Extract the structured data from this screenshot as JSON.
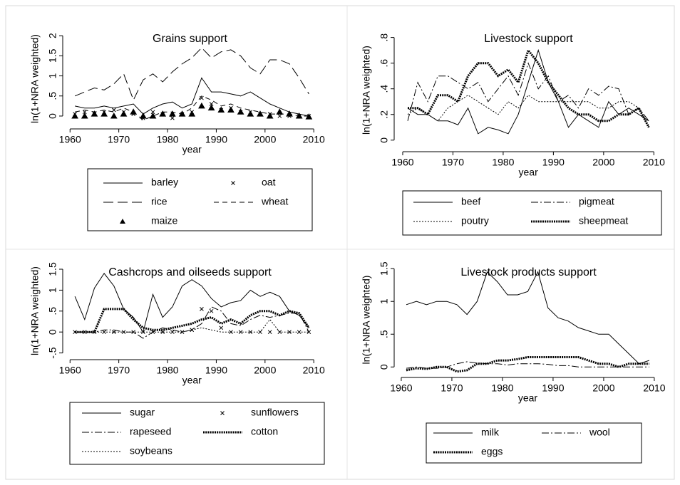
{
  "chart_data": [
    {
      "type": "line",
      "title": "Grains support",
      "xlabel": "year",
      "ylabel": "ln(1+NRA weighted)",
      "x": [
        1961,
        1963,
        1965,
        1967,
        1969,
        1971,
        1973,
        1975,
        1977,
        1979,
        1981,
        1983,
        1985,
        1987,
        1989,
        1991,
        1993,
        1995,
        1997,
        1999,
        2001,
        2003,
        2005,
        2007,
        2009
      ],
      "xlim": [
        1958.5,
        2010.7
      ],
      "xticks": [
        1960,
        1970,
        1980,
        1990,
        2000,
        2010
      ],
      "ylim": [
        -0.32,
        2.18
      ],
      "yticks": [
        0,
        {
          "value": 0.5,
          "label": ".5"
        },
        1,
        1.5,
        2
      ],
      "series": [
        {
          "name": "barley",
          "color": "#000000",
          "style": "solid",
          "values": [
            0.25,
            0.2,
            0.2,
            0.25,
            0.2,
            0.25,
            0.3,
            0.05,
            0.2,
            0.3,
            0.35,
            0.2,
            0.3,
            0.95,
            0.6,
            0.6,
            0.55,
            0.5,
            0.6,
            0.45,
            0.3,
            0.2,
            0.1,
            0.05,
            0
          ]
        },
        {
          "name": "oat",
          "color": "#000000",
          "style": "x",
          "values": [
            0.05,
            0.1,
            0.05,
            0.1,
            0.15,
            0.1,
            0.05,
            -0.05,
            0.1,
            0.05,
            -0.05,
            0.05,
            0.1,
            0.45,
            0.3,
            0.15,
            0.2,
            0.1,
            0.1,
            0.05,
            0.05,
            0,
            0,
            0,
            0
          ]
        },
        {
          "name": "rice",
          "color": "#000000",
          "style": "longdash",
          "values": [
            0.5,
            0.6,
            0.7,
            0.65,
            0.8,
            1.05,
            0.4,
            0.9,
            1.05,
            0.85,
            1.1,
            1.3,
            1.45,
            1.7,
            1.45,
            1.6,
            1.65,
            1.5,
            1.2,
            1.05,
            1.4,
            1.4,
            1.3,
            0.95,
            0.55
          ]
        },
        {
          "name": "wheat",
          "color": "#000000",
          "style": "dash",
          "values": [
            0.1,
            0.15,
            0.1,
            0.15,
            0.1,
            0.2,
            0.1,
            -0.1,
            0,
            0.1,
            0.1,
            0.05,
            0.2,
            0.5,
            0.4,
            0.25,
            0.3,
            0.2,
            0.15,
            0.1,
            0.05,
            0.05,
            0.05,
            0,
            0
          ]
        },
        {
          "name": "maize",
          "color": "#000000",
          "style": "triangle",
          "values": [
            0,
            0,
            0.05,
            0.05,
            0,
            0.05,
            0.1,
            0,
            0,
            0.05,
            0.05,
            0.05,
            0.05,
            0.25,
            0.2,
            0.15,
            0.15,
            0.1,
            0.05,
            0.05,
            0,
            0.1,
            0.05,
            0,
            -0.02
          ]
        }
      ]
    },
    {
      "type": "line",
      "title": "Livestock support",
      "xlabel": "year",
      "ylabel": "ln(1+NRA weighted)",
      "x": [
        1961,
        1963,
        1965,
        1967,
        1969,
        1971,
        1973,
        1975,
        1977,
        1979,
        1981,
        1983,
        1985,
        1987,
        1989,
        1991,
        1993,
        1995,
        1997,
        1999,
        2001,
        2003,
        2005,
        2007,
        2009
      ],
      "xlim": [
        1958.3,
        2011.8
      ],
      "xticks": [
        1960,
        1970,
        1980,
        1990,
        2000,
        2010
      ],
      "ylim": [
        -0.09,
        0.87
      ],
      "yticks": [
        0,
        {
          "value": 0.2,
          "label": ".2"
        },
        {
          "value": 0.4,
          "label": ".4"
        },
        {
          "value": 0.6,
          "label": ".6"
        },
        {
          "value": 0.8,
          "label": ".8"
        }
      ],
      "series": [
        {
          "name": "beef",
          "color": "#000000",
          "style": "solid",
          "values": [
            0.25,
            0.2,
            0.2,
            0.15,
            0.15,
            0.12,
            0.25,
            0.05,
            0.1,
            0.08,
            0.05,
            0.2,
            0.45,
            0.7,
            0.45,
            0.3,
            0.1,
            0.2,
            0.15,
            0.1,
            0.3,
            0.2,
            0.25,
            0.2,
            0.15
          ]
        },
        {
          "name": "pigmeat",
          "color": "#000000",
          "style": "dashdot",
          "values": [
            0.15,
            0.45,
            0.3,
            0.5,
            0.5,
            0.45,
            0.4,
            0.45,
            0.3,
            0.4,
            0.5,
            0.35,
            0.6,
            0.4,
            0.5,
            0.3,
            0.35,
            0.25,
            0.4,
            0.35,
            0.42,
            0.4,
            0.2,
            0.25,
            0.15
          ]
        },
        {
          "name": "poutry",
          "color": "#000000",
          "style": "dot",
          "values": [
            0.2,
            0.25,
            0.2,
            0.15,
            0.25,
            0.3,
            0.35,
            0.3,
            0.25,
            0.2,
            0.3,
            0.25,
            0.35,
            0.3,
            0.3,
            0.3,
            0.3,
            0.3,
            0.3,
            0.25,
            0.25,
            0.3,
            0.3,
            0.25,
            0.1
          ]
        },
        {
          "name": "sheepmeat",
          "color": "#000000",
          "style": "thickdot",
          "values": [
            0.25,
            0.25,
            0.2,
            0.35,
            0.35,
            0.3,
            0.5,
            0.6,
            0.6,
            0.5,
            0.55,
            0.45,
            0.7,
            0.6,
            0.45,
            0.35,
            0.25,
            0.2,
            0.2,
            0.15,
            0.15,
            0.2,
            0.2,
            0.25,
            0.1
          ]
        }
      ]
    },
    {
      "type": "line",
      "title": "Cashcrops and oilseeds support",
      "xlabel": "year",
      "ylabel": "ln(1+NRA weighted)",
      "x": [
        1961,
        1963,
        1965,
        1967,
        1969,
        1971,
        1973,
        1975,
        1977,
        1979,
        1981,
        1983,
        1985,
        1987,
        1989,
        1991,
        1993,
        1995,
        1997,
        1999,
        2001,
        2003,
        2005,
        2007,
        2009
      ],
      "xlim": [
        1958.5,
        2010.7
      ],
      "xticks": [
        1960,
        1970,
        1980,
        1990,
        2000,
        2010
      ],
      "ylim": [
        -0.66,
        1.67
      ],
      "yticks": [
        {
          "value": -0.5,
          "label": "-.5"
        },
        0,
        {
          "value": 0.5,
          "label": ".5"
        },
        1,
        1.5
      ],
      "series": [
        {
          "name": "sugar",
          "color": "#000000",
          "style": "solid",
          "values": [
            0.85,
            0.3,
            1.05,
            1.4,
            1.1,
            0.55,
            0.35,
            0,
            0.9,
            0.35,
            0.6,
            1.1,
            1.25,
            1.1,
            0.8,
            0.6,
            0.7,
            0.75,
            1,
            0.85,
            0.95,
            0.85,
            0.5,
            0.4,
            0.1
          ]
        },
        {
          "name": "sunflowers",
          "color": "#000000",
          "style": "x",
          "values": [
            0,
            0,
            0,
            0,
            0,
            0,
            0,
            0,
            0,
            0,
            0,
            0,
            0.05,
            0.55,
            0.5,
            0.1,
            0,
            0,
            0,
            0,
            0,
            0,
            0,
            0,
            0
          ]
        },
        {
          "name": "rapeseed",
          "color": "#000000",
          "style": "dashdot",
          "values": [
            0,
            0,
            0,
            0.05,
            0.05,
            0,
            0,
            -0.15,
            0,
            0.1,
            0.05,
            0,
            0.05,
            0.2,
            0.6,
            0.5,
            0.2,
            0.15,
            0.3,
            0.4,
            0.35,
            0.4,
            0.45,
            0.45,
            0
          ]
        },
        {
          "name": "cotton",
          "color": "#000000",
          "style": "thickdot",
          "values": [
            0,
            0,
            0,
            0.55,
            0.55,
            0.55,
            0.3,
            0.1,
            0.05,
            0.05,
            0.1,
            0.15,
            0.2,
            0.3,
            0.35,
            0.2,
            0.3,
            0.2,
            0.4,
            0.5,
            0.5,
            0.4,
            0.5,
            0.45,
            0.1
          ]
        },
        {
          "name": "soybeans",
          "color": "#000000",
          "style": "dot",
          "values": [
            0,
            0,
            0,
            0,
            0,
            0,
            0,
            0,
            0,
            0,
            0,
            0,
            0.05,
            0.1,
            0.05,
            0,
            0,
            0,
            0,
            0,
            0.3,
            0,
            0,
            0,
            0
          ]
        }
      ]
    },
    {
      "type": "line",
      "title": "Livestock products support",
      "xlabel": "year",
      "ylabel": "ln(1+NRA weighted)",
      "x": [
        1961,
        1963,
        1965,
        1967,
        1969,
        1971,
        1973,
        1975,
        1977,
        1979,
        1981,
        1983,
        1985,
        1987,
        1989,
        1991,
        1993,
        1995,
        1997,
        1999,
        2001,
        2003,
        2005,
        2007,
        2009
      ],
      "xlim": [
        1958.6,
        2011.7
      ],
      "xticks": [
        1960,
        1970,
        1980,
        1990,
        2000,
        2010
      ],
      "ylim": [
        -0.16,
        1.6
      ],
      "yticks": [
        0,
        {
          "value": 0.5,
          "label": ".5"
        },
        1,
        1.5
      ],
      "series": [
        {
          "name": "milk",
          "color": "#000000",
          "style": "solid",
          "values": [
            0.95,
            1,
            0.95,
            1,
            1,
            0.95,
            0.8,
            1,
            1.45,
            1.3,
            1.1,
            1.1,
            1.15,
            1.45,
            0.9,
            0.75,
            0.7,
            0.6,
            0.55,
            0.5,
            0.5,
            0.35,
            0.2,
            0.05,
            0.1
          ]
        },
        {
          "name": "wool",
          "color": "#000000",
          "style": "dashdot",
          "values": [
            -0.02,
            0,
            -0.02,
            -0.02,
            0,
            0.05,
            0.08,
            0.06,
            0.05,
            0.05,
            0.03,
            0.05,
            0.05,
            0.05,
            0.04,
            0.02,
            0.02,
            0,
            0,
            0,
            0,
            0,
            0,
            0,
            0
          ]
        },
        {
          "name": "eggs",
          "color": "#000000",
          "style": "thickdot",
          "values": [
            -0.05,
            -0.02,
            -0.03,
            0,
            0,
            -0.07,
            -0.05,
            0.05,
            0.05,
            0.1,
            0.1,
            0.12,
            0.15,
            0.15,
            0.15,
            0.15,
            0.15,
            0.15,
            0.1,
            0.05,
            0.05,
            0,
            0.05,
            0.05,
            0.05
          ]
        }
      ]
    }
  ]
}
